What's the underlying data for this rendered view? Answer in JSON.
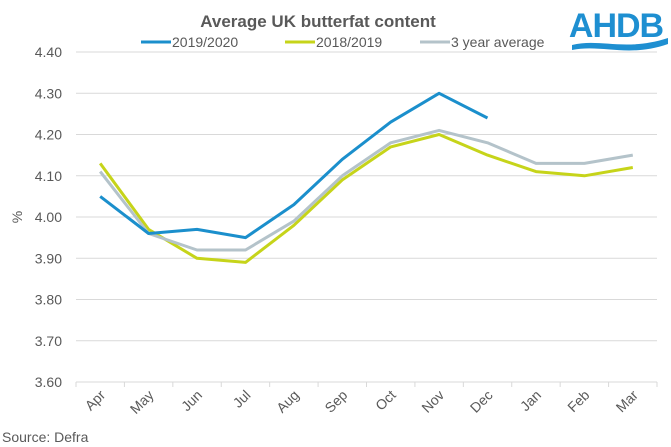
{
  "chart_data": {
    "type": "line",
    "title": "Average UK butterfat content",
    "xlabel": "",
    "ylabel": "%",
    "ylim": [
      3.6,
      4.4
    ],
    "yticks": [
      "3.60",
      "3.70",
      "3.80",
      "3.90",
      "4.00",
      "4.10",
      "4.20",
      "4.30",
      "4.40"
    ],
    "ytick_values": [
      3.6,
      3.7,
      3.8,
      3.9,
      4.0,
      4.1,
      4.2,
      4.3,
      4.4
    ],
    "grid": true,
    "legend_position": "top-center",
    "categories": [
      "Apr",
      "May",
      "Jun",
      "Jul",
      "Aug",
      "Sep",
      "Oct",
      "Nov",
      "Dec",
      "Jan",
      "Feb",
      "Mar"
    ],
    "series": [
      {
        "name": "2019/2020",
        "color": "#1b8fcc",
        "values": [
          4.05,
          3.96,
          3.97,
          3.95,
          4.03,
          4.14,
          4.23,
          4.3,
          4.24,
          null,
          null,
          null
        ]
      },
      {
        "name": "2018/2019",
        "color": "#c6d41a",
        "values": [
          4.13,
          3.97,
          3.9,
          3.89,
          3.98,
          4.09,
          4.17,
          4.2,
          4.15,
          4.11,
          4.1,
          4.12
        ]
      },
      {
        "name": "3 year average",
        "color": "#b4c3ca",
        "values": [
          4.11,
          3.96,
          3.92,
          3.92,
          3.99,
          4.1,
          4.18,
          4.21,
          4.18,
          4.13,
          4.13,
          4.15
        ]
      }
    ],
    "source": "Source: Defra"
  },
  "logo": {
    "text": "AHDB",
    "color": "#1e8fd1"
  },
  "colors": {
    "text": "#595959",
    "gridline": "#d9d9d9"
  }
}
